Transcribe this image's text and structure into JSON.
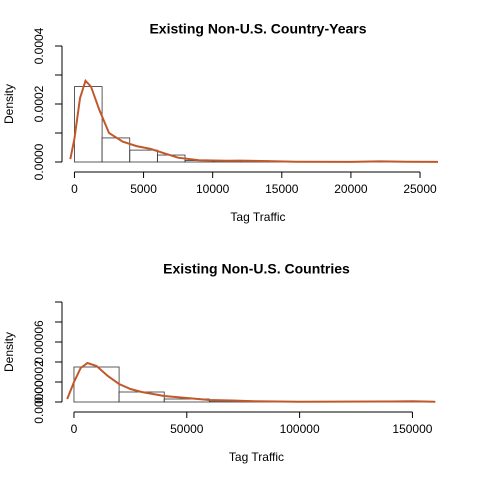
{
  "chart_data": [
    {
      "type": "histogram",
      "title": "Existing Non-U.S. Country-Years",
      "x_label": "Tag Traffic",
      "y_label": "Density",
      "bins": [
        0,
        2000,
        4000,
        6000,
        8000,
        10000,
        12000,
        14000,
        16000,
        18000,
        20000,
        22000,
        24000,
        26000
      ],
      "values": [
        0.00026,
        8.3e-05,
        4.1e-05,
        2.4e-05,
        5e-06,
        3e-06,
        4e-06,
        2e-06,
        1e-06,
        5e-07,
        5e-07,
        1e-06,
        5e-07
      ],
      "density": {
        "color": "#c1582b",
        "x": [
          -300,
          0,
          400,
          800,
          1200,
          1800,
          2500,
          3500,
          4500,
          5500,
          6500,
          7500,
          9000,
          11000,
          12000,
          14000,
          16000,
          20000,
          22000,
          24000,
          26300
        ],
        "y": [
          1e-05,
          8e-05,
          0.00022,
          0.00028,
          0.00026,
          0.00018,
          0.0001,
          7e-05,
          5.5e-05,
          4.5e-05,
          3e-05,
          1.5e-05,
          6e-06,
          4e-06,
          5e-06,
          3e-06,
          1e-06,
          5e-07,
          2e-06,
          1e-06,
          5e-07
        ]
      },
      "xlim": [
        -900,
        26300
      ],
      "xticks": [
        0,
        5000,
        10000,
        15000,
        20000,
        25000
      ],
      "ylim": [
        0,
        0.0004
      ],
      "yticks": [
        {
          "value": 0,
          "label": "0.0000"
        },
        {
          "value": 0.0002,
          "label": "0.0002"
        },
        {
          "value": 0.0004,
          "label": "0.0004"
        }
      ],
      "yminor_ticks": [
        0.0001,
        0.0003
      ]
    },
    {
      "type": "histogram",
      "title": "Existing Non-U.S. Countries",
      "x_label": "Tag Traffic",
      "y_label": "Density",
      "bins": [
        0,
        20000,
        40000,
        60000,
        80000,
        100000,
        120000,
        140000,
        160000
      ],
      "values": [
        3.5e-05,
        1e-05,
        3e-06,
        1e-06,
        2e-07,
        2e-07,
        2e-07,
        3e-07
      ],
      "density": {
        "color": "#c1582b",
        "x": [
          -3000,
          0,
          3000,
          6000,
          10000,
          15000,
          20000,
          25000,
          30000,
          40000,
          50000,
          60000,
          70000,
          80000,
          100000,
          140000,
          150000,
          160000
        ],
        "y": [
          3e-06,
          2e-05,
          3.4e-05,
          3.9e-05,
          3.6e-05,
          2.6e-05,
          1.8e-05,
          1.3e-05,
          1e-05,
          6e-06,
          4e-06,
          2e-06,
          1.5e-06,
          8e-07,
          2e-07,
          5e-07,
          8e-07,
          2e-07
        ]
      },
      "xlim": [
        -5300,
        160000
      ],
      "xticks": [
        0,
        50000,
        100000,
        150000
      ],
      "ylim": [
        0,
        0.0001
      ],
      "yticks": [
        {
          "value": 0,
          "label": "0.00000"
        },
        {
          "value": 2e-05,
          "label": "0.00002"
        },
        {
          "value": 6e-05,
          "label": "0.00006"
        }
      ],
      "yminor_ticks": [
        4e-05,
        8e-05,
        0.0001
      ]
    }
  ]
}
